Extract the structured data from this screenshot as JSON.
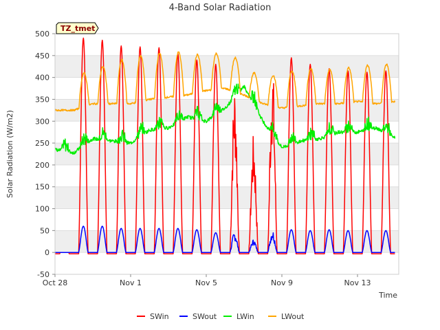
{
  "chart_data": {
    "type": "line",
    "title": "4-Band Solar Radiation",
    "xlabel": "Time",
    "ylabel": "Solar Radiation (W/m2)",
    "site_label": "TZ_tmet",
    "ylim": [
      -50,
      500
    ],
    "y_ticks": [
      -50,
      0,
      50,
      100,
      150,
      200,
      250,
      300,
      350,
      400,
      450,
      500
    ],
    "x_range_days": [
      "2023-10-28",
      "2023-11-15"
    ],
    "x_ticks": [
      {
        "label": "Oct 28",
        "date": "2023-10-28"
      },
      {
        "label": "Nov 1",
        "date": "2023-11-01"
      },
      {
        "label": "Nov 5",
        "date": "2023-11-05"
      },
      {
        "label": "Nov 9",
        "date": "2023-11-09"
      },
      {
        "label": "Nov 13",
        "date": "2023-11-13"
      }
    ],
    "grid": "horizontal bands",
    "legend_position": "bottom",
    "days": [
      "2023-10-28",
      "2023-10-29",
      "2023-10-30",
      "2023-10-31",
      "2023-11-01",
      "2023-11-02",
      "2023-11-03",
      "2023-11-04",
      "2023-11-05",
      "2023-11-06",
      "2023-11-07",
      "2023-11-08",
      "2023-11-09",
      "2023-11-10",
      "2023-11-11",
      "2023-11-12",
      "2023-11-13",
      "2023-11-14",
      "2023-11-15"
    ],
    "series": [
      {
        "name": "SWin",
        "color": "#ff0000",
        "daily_peak": [
          0,
          490,
          485,
          472,
          470,
          468,
          455,
          440,
          430,
          390,
          270,
          440,
          445,
          430,
          420,
          415,
          412,
          415,
          0
        ],
        "night_value": -3
      },
      {
        "name": "SWout",
        "color": "#0000ff",
        "daily_peak": [
          0,
          60,
          60,
          55,
          55,
          55,
          55,
          52,
          45,
          48,
          30,
          52,
          52,
          50,
          52,
          50,
          50,
          50,
          0
        ],
        "night_value": 0
      },
      {
        "name": "LWin",
        "color": "#00ee00",
        "daily_level": [
          235,
          228,
          260,
          255,
          250,
          280,
          285,
          310,
          300,
          330,
          380,
          300,
          240,
          255,
          260,
          275,
          275,
          285,
          262
        ],
        "daytime_bump": 25
      },
      {
        "name": "LWout",
        "color": "#ffa500",
        "daily_night": [
          325,
          325,
          340,
          340,
          340,
          350,
          355,
          360,
          370,
          375,
          360,
          340,
          330,
          335,
          340,
          340,
          345,
          340,
          345
        ],
        "daily_peak": [
          0,
          410,
          425,
          440,
          450,
          455,
          458,
          452,
          455,
          445,
          410,
          405,
          415,
          420,
          418,
          422,
          428,
          430,
          0
        ]
      }
    ]
  }
}
